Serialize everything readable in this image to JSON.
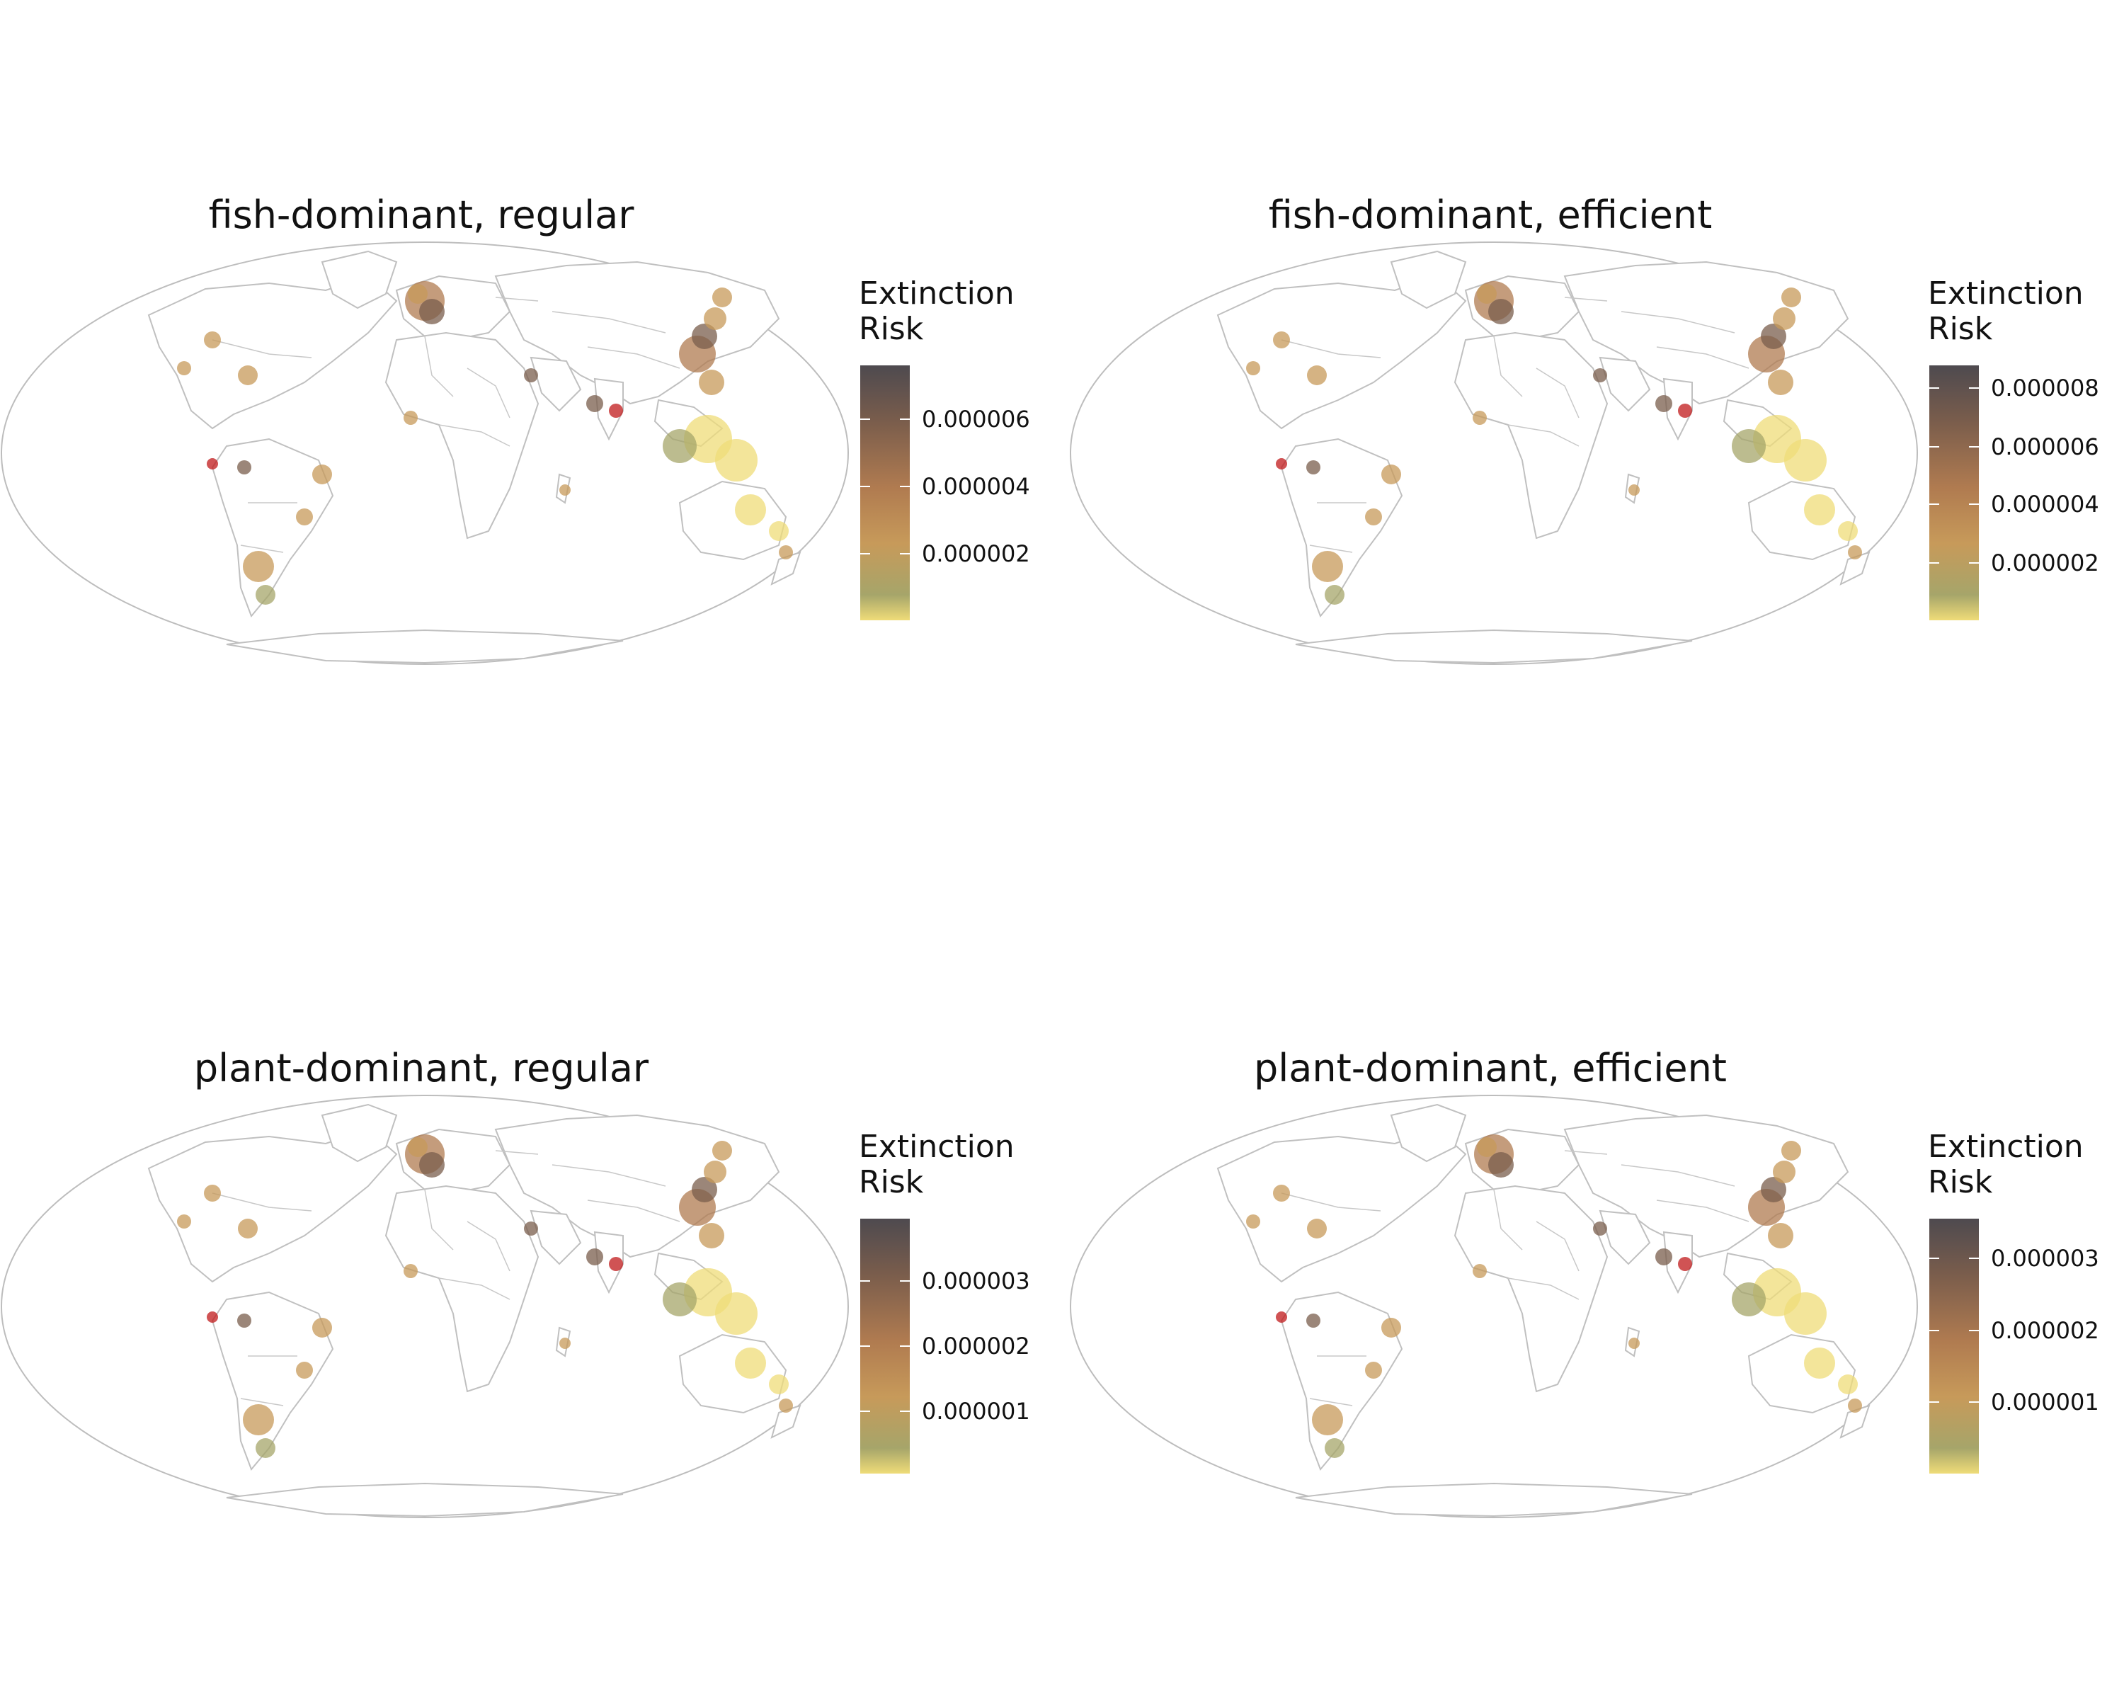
{
  "panels": [
    {
      "title": "fish-dominant, regular",
      "legend_title": "Extinction\nRisk",
      "ticks": [
        {
          "label": "0.000006",
          "fraction": 0.79
        },
        {
          "label": "0.000004",
          "fraction": 0.525
        },
        {
          "label": "0.000002",
          "fraction": 0.26
        }
      ]
    },
    {
      "title": "fish-dominant, efficient",
      "legend_title": "Extinction\nRisk",
      "ticks": [
        {
          "label": "0.000008",
          "fraction": 0.91
        },
        {
          "label": "0.000006",
          "fraction": 0.68
        },
        {
          "label": "0.000004",
          "fraction": 0.455
        },
        {
          "label": "0.000002",
          "fraction": 0.225
        }
      ]
    },
    {
      "title": "plant-dominant, regular",
      "legend_title": "Extinction\nRisk",
      "ticks": [
        {
          "label": "0.000003",
          "fraction": 0.755
        },
        {
          "label": "0.000002",
          "fraction": 0.5
        },
        {
          "label": "0.000001",
          "fraction": 0.245
        }
      ]
    },
    {
      "title": "plant-dominant, efficient",
      "legend_title": "Extinction\nRisk",
      "ticks": [
        {
          "label": "0.000003",
          "fraction": 0.845
        },
        {
          "label": "0.000002",
          "fraction": 0.56
        },
        {
          "label": "0.000001",
          "fraction": 0.28
        }
      ]
    }
  ],
  "colors": {
    "high": "#4e4a4f",
    "mid_high": "#7a5d4c",
    "mid": "#b07b50",
    "mid_low": "#c79a5a",
    "low_green": "#a6a56a",
    "lowest": "#efdc78",
    "hotspot": "#c0191b",
    "country_border": "#c0c0c0"
  },
  "projection": "mollweide"
}
